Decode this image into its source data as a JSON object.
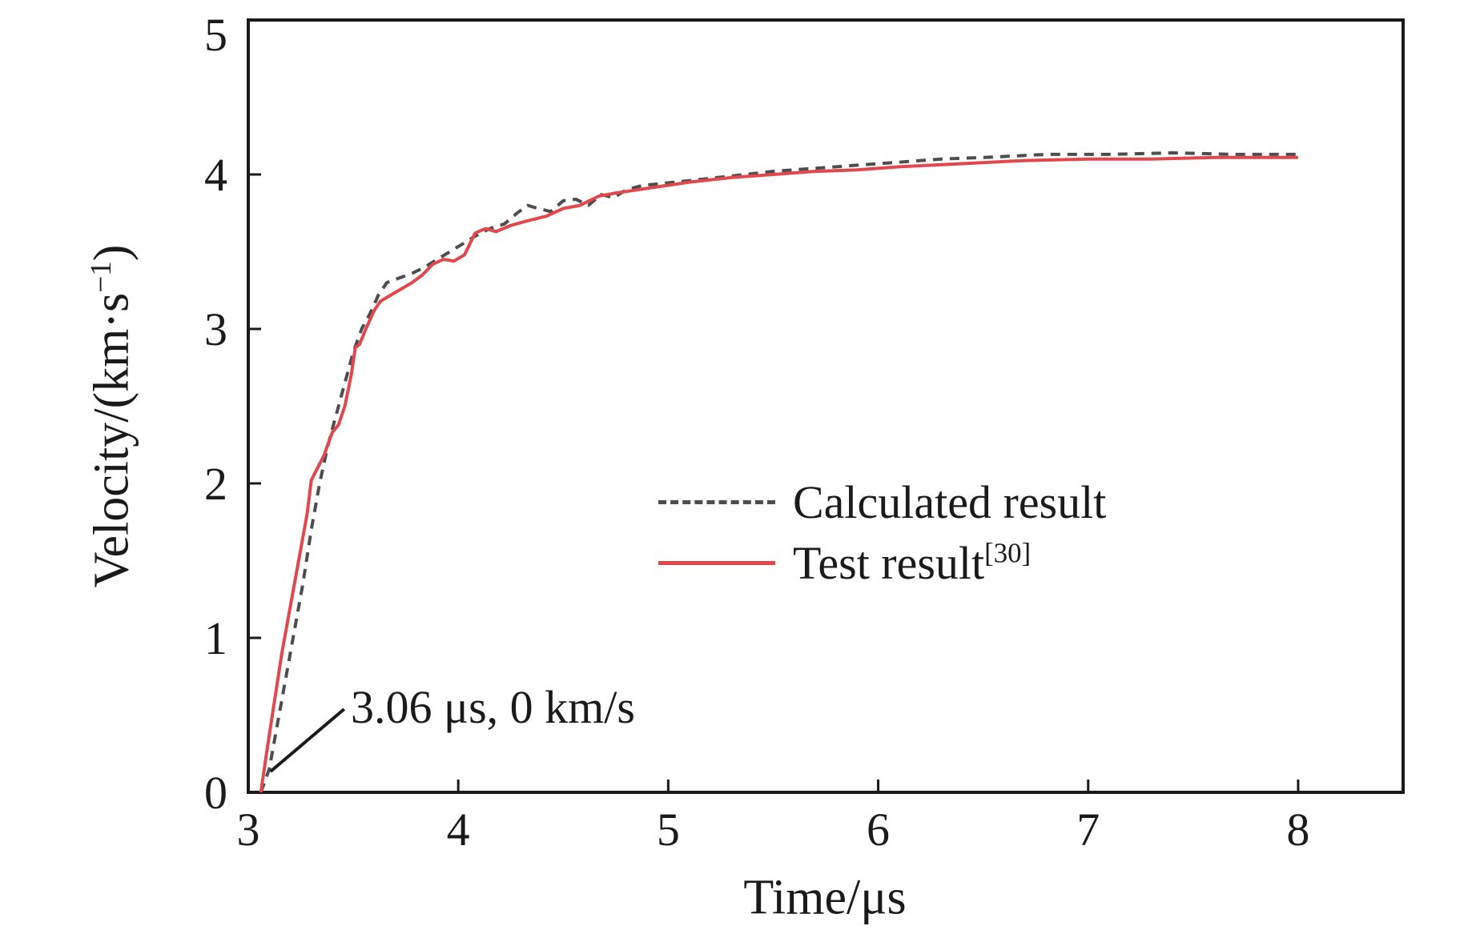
{
  "chart_data": {
    "type": "line",
    "title": "",
    "xlabel": "Time/μs",
    "ylabel": {
      "pre": "Velocity/(km·s",
      "sup": "−1",
      "post": ")"
    },
    "xlim": [
      3,
      8.5
    ],
    "ylim": [
      0,
      5
    ],
    "x_ticks": [
      3,
      4,
      5,
      6,
      7,
      8
    ],
    "y_ticks": [
      0,
      1,
      2,
      3,
      4,
      5
    ],
    "grid": false,
    "legend_position": "inside-center-right",
    "axis_color": "#1a1a1a",
    "series": [
      {
        "name": "Calculated result",
        "style": "dashed",
        "color": "#4d4d4d",
        "points": [
          [
            3.06,
            0
          ],
          [
            3.1,
            0.15
          ],
          [
            3.14,
            0.45
          ],
          [
            3.18,
            0.75
          ],
          [
            3.22,
            1.05
          ],
          [
            3.26,
            1.35
          ],
          [
            3.3,
            1.7
          ],
          [
            3.34,
            2.0
          ],
          [
            3.38,
            2.25
          ],
          [
            3.42,
            2.45
          ],
          [
            3.46,
            2.65
          ],
          [
            3.5,
            2.85
          ],
          [
            3.54,
            3.0
          ],
          [
            3.58,
            3.1
          ],
          [
            3.62,
            3.22
          ],
          [
            3.66,
            3.3
          ],
          [
            3.72,
            3.33
          ],
          [
            3.78,
            3.36
          ],
          [
            3.84,
            3.4
          ],
          [
            3.9,
            3.45
          ],
          [
            3.96,
            3.5
          ],
          [
            4.02,
            3.55
          ],
          [
            4.08,
            3.6
          ],
          [
            4.15,
            3.65
          ],
          [
            4.22,
            3.68
          ],
          [
            4.28,
            3.75
          ],
          [
            4.33,
            3.8
          ],
          [
            4.38,
            3.78
          ],
          [
            4.44,
            3.76
          ],
          [
            4.5,
            3.83
          ],
          [
            4.56,
            3.84
          ],
          [
            4.62,
            3.8
          ],
          [
            4.68,
            3.87
          ],
          [
            4.74,
            3.85
          ],
          [
            4.8,
            3.9
          ],
          [
            4.88,
            3.93
          ],
          [
            4.96,
            3.94
          ],
          [
            5.1,
            3.96
          ],
          [
            5.3,
            3.99
          ],
          [
            5.5,
            4.02
          ],
          [
            5.7,
            4.04
          ],
          [
            5.9,
            4.06
          ],
          [
            6.1,
            4.08
          ],
          [
            6.3,
            4.1
          ],
          [
            6.5,
            4.11
          ],
          [
            6.8,
            4.13
          ],
          [
            7.1,
            4.13
          ],
          [
            7.4,
            4.14
          ],
          [
            7.7,
            4.13
          ],
          [
            8.0,
            4.13
          ]
        ]
      },
      {
        "name": "Test result",
        "name_sup": "[30]",
        "style": "solid",
        "color": "#e2474d",
        "points": [
          [
            3.06,
            0
          ],
          [
            3.09,
            0.28
          ],
          [
            3.12,
            0.55
          ],
          [
            3.16,
            0.9
          ],
          [
            3.2,
            1.2
          ],
          [
            3.24,
            1.5
          ],
          [
            3.28,
            1.8
          ],
          [
            3.3,
            2.02
          ],
          [
            3.33,
            2.1
          ],
          [
            3.36,
            2.18
          ],
          [
            3.4,
            2.33
          ],
          [
            3.43,
            2.38
          ],
          [
            3.46,
            2.5
          ],
          [
            3.49,
            2.7
          ],
          [
            3.51,
            2.88
          ],
          [
            3.53,
            2.9
          ],
          [
            3.56,
            3.0
          ],
          [
            3.6,
            3.12
          ],
          [
            3.63,
            3.18
          ],
          [
            3.68,
            3.22
          ],
          [
            3.73,
            3.26
          ],
          [
            3.78,
            3.3
          ],
          [
            3.83,
            3.35
          ],
          [
            3.88,
            3.42
          ],
          [
            3.93,
            3.45
          ],
          [
            3.98,
            3.44
          ],
          [
            4.03,
            3.48
          ],
          [
            4.08,
            3.62
          ],
          [
            4.13,
            3.65
          ],
          [
            4.18,
            3.63
          ],
          [
            4.25,
            3.67
          ],
          [
            4.33,
            3.7
          ],
          [
            4.42,
            3.73
          ],
          [
            4.5,
            3.78
          ],
          [
            4.58,
            3.8
          ],
          [
            4.67,
            3.86
          ],
          [
            4.75,
            3.88
          ],
          [
            4.85,
            3.9
          ],
          [
            4.95,
            3.92
          ],
          [
            5.1,
            3.95
          ],
          [
            5.3,
            3.98
          ],
          [
            5.5,
            4.0
          ],
          [
            5.7,
            4.02
          ],
          [
            5.9,
            4.03
          ],
          [
            6.1,
            4.05
          ],
          [
            6.4,
            4.07
          ],
          [
            6.7,
            4.09
          ],
          [
            7.0,
            4.1
          ],
          [
            7.3,
            4.1
          ],
          [
            7.6,
            4.11
          ],
          [
            8.0,
            4.11
          ]
        ]
      }
    ],
    "annotation": {
      "text": "3.06 μs, 0 km/s",
      "point": [
        3.06,
        0
      ]
    }
  }
}
